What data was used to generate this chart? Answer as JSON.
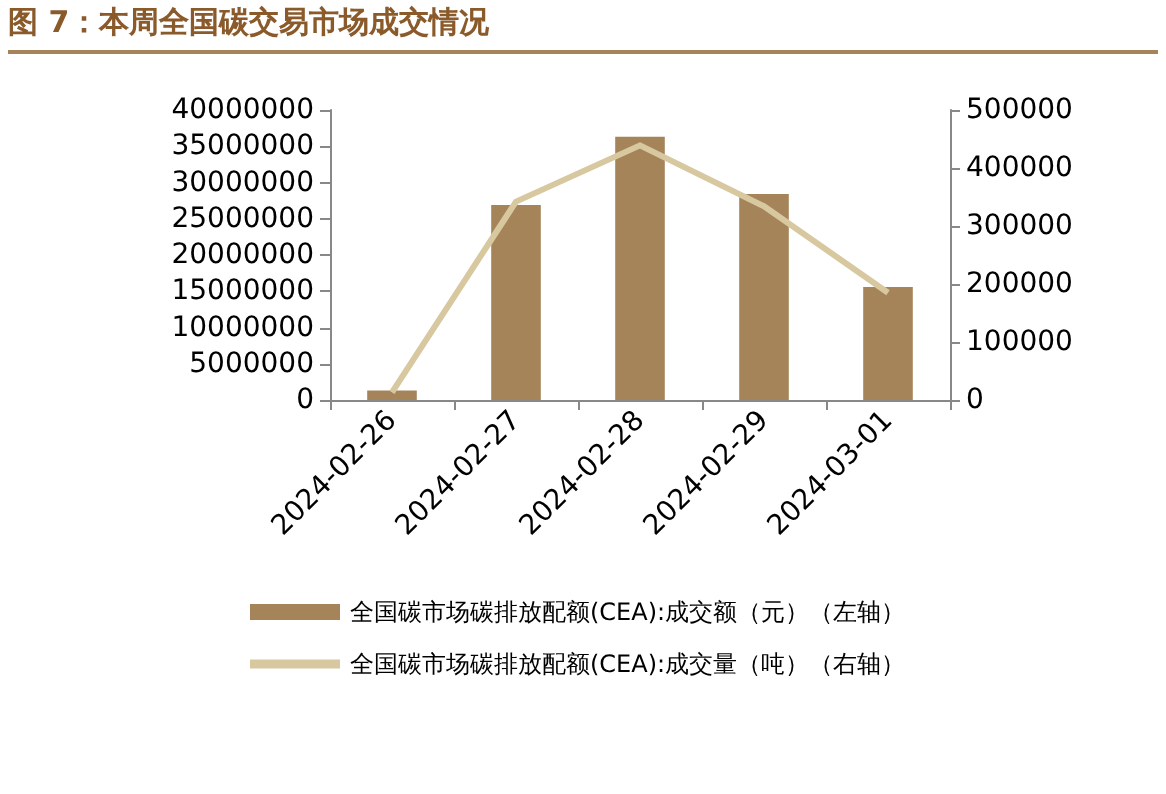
{
  "chart_data": {
    "type": "bar",
    "title": "图 7：本周全国碳交易市场成交情况",
    "categories": [
      "2024-02-26",
      "2024-02-27",
      "2024-02-28",
      "2024-02-29",
      "2024-03-01"
    ],
    "series": [
      {
        "name": "全国碳市场碳排放配额(CEA):成交额（元）（左轴）",
        "color": "#a6845a",
        "values": [
          1300000,
          26900000,
          36300000,
          28400000,
          15600000
        ]
      },
      {
        "name": "全国碳市场碳排放配额(CEA):成交量（吨）（右轴）",
        "type": "line",
        "axis": "y2",
        "color": "#d8c8a0",
        "values": [
          13000,
          342000,
          439000,
          334000,
          185000
        ]
      }
    ],
    "ylim": [
      0,
      40000000
    ],
    "yticks": [
      0,
      5000000,
      10000000,
      15000000,
      20000000,
      25000000,
      30000000,
      35000000,
      40000000
    ],
    "y2lim": [
      0,
      500000
    ],
    "y2ticks": [
      0,
      100000,
      200000,
      300000,
      400000,
      500000
    ],
    "grid": false,
    "legend": "bottom",
    "marker": "none",
    "line_style": "solid"
  }
}
